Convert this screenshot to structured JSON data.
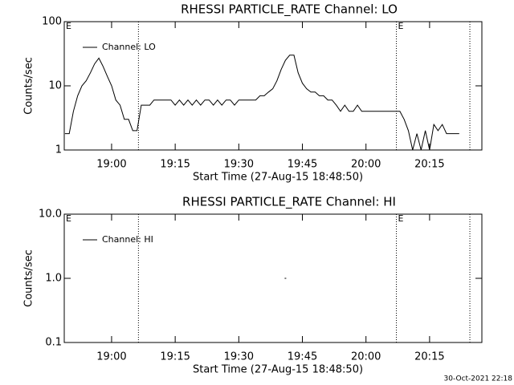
{
  "chart_data": [
    {
      "type": "line",
      "title": "RHESSI PARTICLE_RATE Channel: LO",
      "xlabel": "Start Time (27-Aug-15 18:48:50)",
      "ylabel": "Counts/sec",
      "log_y": true,
      "ylim": [
        1,
        100
      ],
      "yticks": [
        1,
        10,
        100
      ],
      "xlim": [
        "18:48:50",
        "20:27:20"
      ],
      "xticks": [
        "19:00",
        "19:15",
        "19:30",
        "19:45",
        "20:00",
        "20:15"
      ],
      "vlines": [
        "19:06:20",
        "20:07:10",
        "20:24:30"
      ],
      "annotations": [
        {
          "text": "E",
          "x": "18:48:50"
        },
        {
          "text": "E",
          "x": "20:07:10"
        }
      ],
      "legend": "upper left",
      "x": [
        "18:49",
        "18:50",
        "18:51",
        "18:52",
        "18:53",
        "18:54",
        "18:55",
        "18:56",
        "18:57",
        "18:58",
        "18:59",
        "19:00",
        "19:01",
        "19:02",
        "19:03",
        "19:04",
        "19:05",
        "19:06",
        "19:07",
        "19:08",
        "19:09",
        "19:10",
        "19:11",
        "19:12",
        "19:13",
        "19:14",
        "19:15",
        "19:16",
        "19:17",
        "19:18",
        "19:19",
        "19:20",
        "19:21",
        "19:22",
        "19:23",
        "19:24",
        "19:25",
        "19:26",
        "19:27",
        "19:28",
        "19:29",
        "19:30",
        "19:31",
        "19:32",
        "19:33",
        "19:34",
        "19:35",
        "19:36",
        "19:37",
        "19:38",
        "19:39",
        "19:40",
        "19:41",
        "19:42",
        "19:43",
        "19:44",
        "19:45",
        "19:46",
        "19:47",
        "19:48",
        "19:49",
        "19:50",
        "19:51",
        "19:52",
        "19:53",
        "19:54",
        "19:55",
        "19:56",
        "19:57",
        "19:58",
        "19:59",
        "20:00",
        "20:01",
        "20:02",
        "20:03",
        "20:04",
        "20:05",
        "20:06",
        "20:07",
        "20:08",
        "20:09",
        "20:10",
        "20:11",
        "20:12",
        "20:13",
        "20:14",
        "20:15",
        "20:16",
        "20:17",
        "20:18",
        "20:19",
        "20:20",
        "20:21",
        "20:22"
      ],
      "series": [
        {
          "name": "Channel: LO",
          "color": "#000000",
          "values": [
            1.8,
            1.8,
            4,
            7,
            10,
            12,
            16,
            22,
            27,
            20,
            14,
            10,
            6,
            5,
            3,
            3,
            2,
            2,
            5,
            5,
            5,
            6,
            6,
            6,
            6,
            6,
            5,
            6,
            5,
            6,
            5,
            6,
            5,
            6,
            6,
            5,
            6,
            5,
            6,
            6,
            5,
            6,
            6,
            6,
            6,
            6,
            7,
            7,
            8,
            9,
            12,
            18,
            25,
            30,
            30,
            16,
            11,
            9,
            8,
            8,
            7,
            7,
            6,
            6,
            5,
            4,
            5,
            4,
            4,
            5,
            4,
            4,
            4,
            4,
            4,
            4,
            4,
            4,
            4,
            4,
            3,
            2,
            1,
            1.8,
            1,
            2,
            1,
            2.5,
            2,
            2.5,
            1.8,
            1.8,
            1.8,
            1.8
          ]
        }
      ]
    },
    {
      "type": "line",
      "title": "RHESSI PARTICLE_RATE Channel: HI",
      "xlabel": "Start Time (27-Aug-15 18:48:50)",
      "ylabel": "Counts/sec",
      "log_y": true,
      "ylim": [
        0.1,
        10
      ],
      "yticks": [
        0.1,
        {
          "value": 1,
          "label": "1.0"
        },
        {
          "value": 10,
          "label": "10.0"
        }
      ],
      "xlim": [
        "18:48:50",
        "20:27:20"
      ],
      "xticks": [
        "19:00",
        "19:15",
        "19:30",
        "19:45",
        "20:00",
        "20:15"
      ],
      "vlines": [
        "19:06:20",
        "20:07:10",
        "20:24:30"
      ],
      "annotations": [
        {
          "text": "E",
          "x": "18:48:50"
        },
        {
          "text": "E",
          "x": "20:07:10"
        }
      ],
      "legend": "upper left",
      "x": [
        "19:41"
      ],
      "series": [
        {
          "name": "Channel: HI",
          "color": "#000000",
          "values": [
            1
          ]
        }
      ]
    }
  ],
  "footer": "30-Oct-2021 22:18"
}
